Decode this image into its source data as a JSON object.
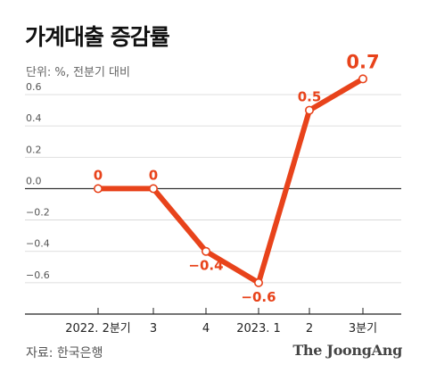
{
  "header": {
    "title": "가계대출 증감률",
    "unit": "단위: %, 전분기 대비"
  },
  "footer": {
    "source": "자료: 한국은행",
    "brand": "The JoongAng"
  },
  "colors": {
    "line": "#e8431b",
    "marker_fill": "#ffffff",
    "axis": "#222222",
    "grid": "#d4d4d4",
    "label": "#e8431b"
  },
  "chart_data": {
    "type": "line",
    "title": "가계대출 증감률",
    "ylabel": "단위: %, 전분기 대비",
    "categories": [
      "2022. 2분기",
      "3",
      "4",
      "2023. 1",
      "2",
      "3분기"
    ],
    "values": [
      0,
      0,
      -0.4,
      -0.6,
      0.5,
      0.7
    ],
    "data_labels": [
      "0",
      "0",
      "−0.4",
      "−0.6",
      "0.5",
      "0.7"
    ],
    "yticks": [
      0.6,
      0.4,
      0.2,
      0.0,
      -0.2,
      -0.4,
      -0.6
    ],
    "ytick_labels": [
      "0.6",
      "0.4",
      "0.2",
      "0.0",
      "−0.2",
      "−0.4",
      "−0.6"
    ],
    "ylim": [
      -0.8,
      0.6
    ],
    "grid": true,
    "legend": "none"
  }
}
